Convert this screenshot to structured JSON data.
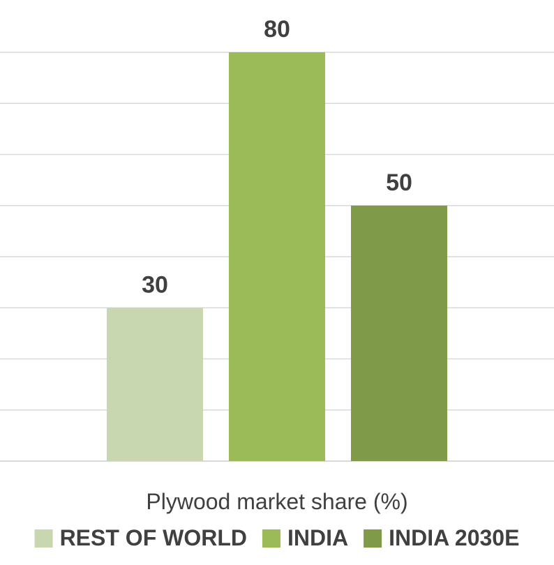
{
  "chart_data": {
    "type": "bar",
    "categories": [
      ""
    ],
    "series": [
      {
        "name": "REST OF WORLD",
        "values": [
          30
        ],
        "color": "#c8d7af"
      },
      {
        "name": "INDIA",
        "values": [
          80
        ],
        "color": "#9bbb59"
      },
      {
        "name": "INDIA 2030E",
        "values": [
          50
        ],
        "color": "#7f9b4a"
      }
    ],
    "xlabel": "Plywood market share (%)",
    "ylim": [
      0,
      80
    ],
    "grid": true,
    "legend_position": "bottom",
    "data_labels": true
  }
}
